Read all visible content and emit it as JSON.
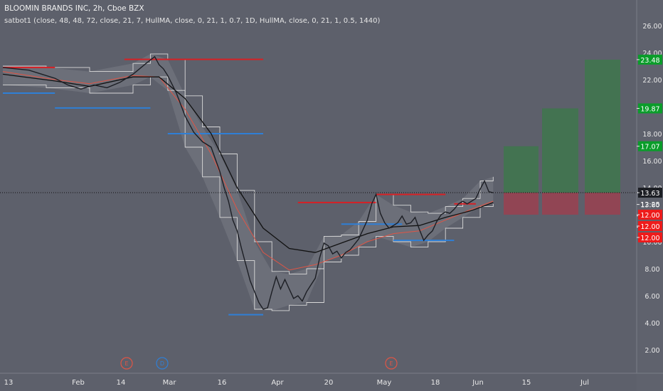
{
  "header": {
    "symbol_line": "BLOOMIN BRANDS INC, 2h, Cboe BZX",
    "study_line": "satbot1 (close, 48, 48, 72, close, 21, 7, HullMA, close, 0, 21, 1, 0.7, 1D, HullMA, close, 0, 21, 1, 0.5, 1440)"
  },
  "colors": {
    "background": "#5d606b",
    "resistance": "#d81f24",
    "support": "#2f7fd6",
    "price": "#1c1e24",
    "slow_ma": "#111111",
    "fast_ma": "#e05545",
    "channel": "#d9d9d9",
    "target": "#3b7a48",
    "target_label": "#0a9d2a",
    "stop": "#9a4150",
    "stop_label": "#ee1b1b",
    "last_price": "#1c1e24"
  },
  "chart_data": {
    "type": "line",
    "title": "BLOOMIN BRANDS INC, 2h, Cboe BZX",
    "x_tick_labels": [
      "13",
      "Feb",
      "14",
      "Mar",
      "16",
      "Apr",
      "20",
      "May",
      "18",
      "Jun",
      "15",
      "Jul"
    ],
    "y_tick_labels": [
      "2.00",
      "4.00",
      "6.00",
      "8.00",
      "10.00",
      "12.00",
      "14.00",
      "16.00",
      "18.00",
      "20.00",
      "22.00",
      "24.00",
      "26.00"
    ],
    "ylim": [
      1,
      27.5
    ],
    "grid": false,
    "price_series": {
      "name": "price",
      "points": [
        [
          0,
          22.9
        ],
        [
          3,
          22.8
        ],
        [
          6,
          22.7
        ],
        [
          9,
          22.4
        ],
        [
          12,
          22.1
        ],
        [
          15,
          21.6
        ],
        [
          18,
          21.3
        ],
        [
          21,
          21.6
        ],
        [
          24,
          21.4
        ],
        [
          27,
          21.8
        ],
        [
          30,
          22.4
        ],
        [
          33,
          23.2
        ],
        [
          35,
          23.7
        ],
        [
          36,
          23.1
        ],
        [
          37,
          22.8
        ],
        [
          38,
          22.3
        ],
        [
          40,
          21.0
        ],
        [
          42,
          19.3
        ],
        [
          44,
          18.1
        ],
        [
          46,
          17.4
        ],
        [
          48,
          17.0
        ],
        [
          49,
          16.1
        ],
        [
          50,
          15.2
        ],
        [
          51,
          14.0
        ],
        [
          52,
          13.0
        ],
        [
          53,
          11.6
        ],
        [
          54,
          10.8
        ],
        [
          55,
          9.5
        ],
        [
          56,
          8.3
        ],
        [
          57,
          7.1
        ],
        [
          58,
          6.3
        ],
        [
          59,
          5.5
        ],
        [
          60,
          5.0
        ],
        [
          61,
          5.1
        ],
        [
          62,
          6.3
        ],
        [
          63,
          7.4
        ],
        [
          64,
          6.5
        ],
        [
          65,
          7.2
        ],
        [
          66,
          6.5
        ],
        [
          67,
          5.8
        ],
        [
          68,
          6.0
        ],
        [
          69,
          5.6
        ],
        [
          70,
          6.3
        ],
        [
          71,
          6.8
        ],
        [
          72,
          7.3
        ],
        [
          73,
          8.8
        ],
        [
          74,
          9.9
        ],
        [
          75,
          9.7
        ],
        [
          76,
          9.1
        ],
        [
          77,
          9.3
        ],
        [
          78,
          8.8
        ],
        [
          79,
          9.2
        ],
        [
          80,
          9.4
        ],
        [
          81,
          9.8
        ],
        [
          82,
          10.2
        ],
        [
          83,
          10.9
        ],
        [
          84,
          11.6
        ],
        [
          85,
          12.8
        ],
        [
          86,
          13.5
        ],
        [
          87,
          12.1
        ],
        [
          88,
          11.4
        ],
        [
          89,
          11.0
        ],
        [
          90,
          11.2
        ],
        [
          91,
          11.4
        ],
        [
          92,
          11.9
        ],
        [
          93,
          11.3
        ],
        [
          94,
          11.4
        ],
        [
          95,
          11.8
        ],
        [
          96,
          10.9
        ],
        [
          97,
          10.1
        ],
        [
          98,
          10.5
        ],
        [
          99,
          10.8
        ],
        [
          100,
          11.5
        ],
        [
          101,
          12.0
        ],
        [
          102,
          12.2
        ],
        [
          103,
          12.1
        ],
        [
          104,
          12.4
        ],
        [
          105,
          12.8
        ],
        [
          106,
          13.0
        ],
        [
          107,
          12.8
        ],
        [
          108,
          13.0
        ],
        [
          109,
          13.2
        ],
        [
          110,
          13.9
        ],
        [
          111,
          14.5
        ],
        [
          112,
          13.7
        ],
        [
          113,
          13.63
        ]
      ]
    },
    "moving_averages": [
      {
        "name": "fast",
        "points": [
          [
            0,
            22.6
          ],
          [
            12,
            22.0
          ],
          [
            20,
            21.7
          ],
          [
            30,
            22.3
          ],
          [
            36,
            22.2
          ],
          [
            42,
            19.8
          ],
          [
            48,
            16.5
          ],
          [
            54,
            12.4
          ],
          [
            60,
            9.2
          ],
          [
            66,
            7.9
          ],
          [
            72,
            8.3
          ],
          [
            78,
            9.0
          ],
          [
            84,
            10.0
          ],
          [
            90,
            10.6
          ],
          [
            96,
            10.8
          ],
          [
            102,
            11.6
          ],
          [
            108,
            12.4
          ],
          [
            113,
            13.0
          ]
        ]
      },
      {
        "name": "slow",
        "points": [
          [
            0,
            22.4
          ],
          [
            12,
            21.9
          ],
          [
            20,
            21.5
          ],
          [
            30,
            22.2
          ],
          [
            36,
            22.2
          ],
          [
            42,
            20.6
          ],
          [
            48,
            18.0
          ],
          [
            54,
            14.0
          ],
          [
            60,
            11.0
          ],
          [
            66,
            9.5
          ],
          [
            72,
            9.2
          ],
          [
            78,
            9.9
          ],
          [
            84,
            10.6
          ],
          [
            90,
            11.1
          ],
          [
            96,
            11.2
          ],
          [
            102,
            11.8
          ],
          [
            108,
            12.3
          ],
          [
            113,
            12.9
          ]
        ]
      }
    ],
    "channel": [
      {
        "name": "upper",
        "points": [
          [
            0,
            23.0
          ],
          [
            10,
            22.9
          ],
          [
            20,
            22.6
          ],
          [
            30,
            23.2
          ],
          [
            34,
            23.9
          ],
          [
            38,
            23.5
          ],
          [
            42,
            20.8
          ],
          [
            46,
            18.5
          ],
          [
            50,
            16.5
          ],
          [
            54,
            13.8
          ],
          [
            58,
            10.0
          ],
          [
            62,
            7.8
          ],
          [
            66,
            7.6
          ],
          [
            70,
            8.0
          ],
          [
            74,
            10.4
          ],
          [
            78,
            10.5
          ],
          [
            82,
            11.5
          ],
          [
            86,
            13.5
          ],
          [
            90,
            12.7
          ],
          [
            94,
            12.2
          ],
          [
            98,
            12.1
          ],
          [
            102,
            12.6
          ],
          [
            106,
            13.2
          ],
          [
            110,
            14.5
          ],
          [
            113,
            14.8
          ]
        ]
      },
      {
        "name": "lower",
        "points": [
          [
            0,
            21.6
          ],
          [
            10,
            21.4
          ],
          [
            20,
            21.0
          ],
          [
            30,
            21.6
          ],
          [
            34,
            22.2
          ],
          [
            38,
            21.2
          ],
          [
            42,
            17.0
          ],
          [
            46,
            14.8
          ],
          [
            50,
            11.8
          ],
          [
            54,
            8.6
          ],
          [
            58,
            5.0
          ],
          [
            62,
            4.9
          ],
          [
            66,
            5.3
          ],
          [
            70,
            5.5
          ],
          [
            74,
            8.5
          ],
          [
            78,
            9.0
          ],
          [
            82,
            9.6
          ],
          [
            86,
            10.4
          ],
          [
            90,
            10.0
          ],
          [
            94,
            9.6
          ],
          [
            98,
            10.0
          ],
          [
            102,
            11.0
          ],
          [
            106,
            11.8
          ],
          [
            110,
            12.6
          ],
          [
            113,
            12.8
          ]
        ]
      }
    ],
    "resistance_levels": [
      [
        0,
        12,
        22.9
      ],
      [
        28,
        60,
        23.5
      ],
      [
        68,
        86,
        12.9
      ],
      [
        86,
        102,
        13.5
      ],
      [
        104,
        109,
        12.8
      ]
    ],
    "support_levels": [
      [
        0,
        12,
        21.0
      ],
      [
        12,
        34,
        19.9
      ],
      [
        38,
        60,
        18.0
      ],
      [
        52,
        60,
        4.6
      ],
      [
        78,
        92,
        11.3
      ],
      [
        90,
        104,
        10.1
      ]
    ],
    "target_levels": [
      {
        "value": 23.48,
        "label": "23.48"
      },
      {
        "value": 19.87,
        "label": "19.87"
      },
      {
        "value": 17.07,
        "label": "17.07"
      }
    ],
    "stop_levels": [
      {
        "value": 12.0,
        "label": "12.00"
      },
      {
        "value": 12.0,
        "label": "12.00"
      },
      {
        "value": 12.0,
        "label": "12.00"
      }
    ],
    "level_labels": [
      "13.60",
      "13.60",
      "13.60"
    ],
    "last_price": {
      "value": 13.63,
      "label": "13.63",
      "countdown": "12:25"
    },
    "event_markers": [
      {
        "letter": "E",
        "kind": "earnings"
      },
      {
        "letter": "D",
        "kind": "dividend"
      },
      {
        "letter": "E",
        "kind": "earnings"
      }
    ]
  }
}
